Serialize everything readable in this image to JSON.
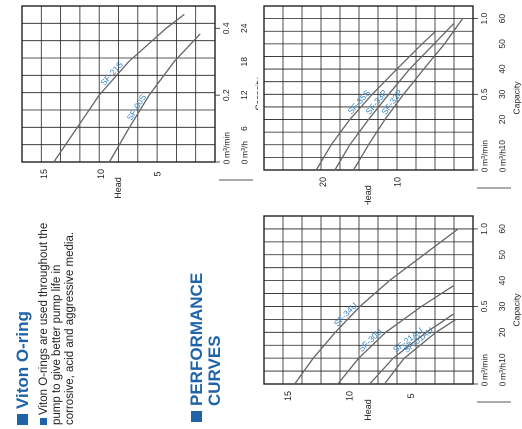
{
  "section_viton": {
    "title": "Viton O-ring",
    "bullet": "Viton O-rings are used throughout the pump to give better pump life in corrosive, acid and aggressive media."
  },
  "section_curves": {
    "title_line1": "PERFORMANCE",
    "title_line2": "CURVES"
  },
  "chart_data": [
    {
      "type": "line",
      "ylabel": "Head",
      "xlabel": "Capacity",
      "unit_m3min": "m³/min",
      "unit_m3h": "m³/h",
      "ylim": [
        0,
        17
      ],
      "xlim_m3h": [
        0,
        28
      ],
      "yticks": [
        5,
        10,
        15
      ],
      "m3min_ticks": [
        "0",
        "0.2",
        "0.4"
      ],
      "m3h_ticks": [
        "0",
        "6",
        "12",
        "18",
        "24"
      ],
      "series": [
        {
          "name": "SF-21S",
          "x": [
            0,
            6,
            12,
            18,
            24,
            26.5
          ],
          "y": [
            14.2,
            12.2,
            10.2,
            7.6,
            4.3,
            2.7
          ]
        },
        {
          "name": "SF-00S",
          "x": [
            0,
            6,
            12,
            18,
            23
          ],
          "y": [
            9.3,
            7.6,
            5.8,
            3.6,
            1.3
          ]
        }
      ]
    },
    {
      "type": "line",
      "ylabel": "Head",
      "xlabel": "Capacity",
      "unit_m3min": "m³/min",
      "unit_m3h": "m³/h",
      "ylim": [
        0,
        28
      ],
      "xlim_m3h": [
        0,
        65
      ],
      "yticks": [
        10,
        20
      ],
      "m3min_ticks": [
        "0",
        "0.5",
        "1.0"
      ],
      "m3h_ticks": [
        "0",
        "10",
        "20",
        "30",
        "40",
        "50",
        "60"
      ],
      "series": [
        {
          "name": "SF-35S",
          "x": [
            0,
            10,
            20,
            30,
            40,
            50,
            55
          ],
          "y": [
            21,
            19,
            16.5,
            13.5,
            10.2,
            6.8,
            5
          ]
        },
        {
          "name": "SF-33P",
          "x": [
            0,
            10,
            20,
            30,
            40,
            50,
            58
          ],
          "y": [
            18.5,
            16.5,
            14,
            11.3,
            8.5,
            5.2,
            2.6
          ]
        },
        {
          "name": "SF-32P",
          "x": [
            0,
            10,
            20,
            30,
            40,
            50,
            60
          ],
          "y": [
            16,
            14,
            11.8,
            9.3,
            6.6,
            3.8,
            1.4
          ]
        }
      ]
    },
    {
      "type": "line",
      "ylabel": "Head",
      "xlabel": "Capacity",
      "unit_m3min": "m³/min",
      "unit_m3h": "m³/h",
      "ylim": [
        0,
        17
      ],
      "xlim_m3h": [
        0,
        65
      ],
      "yticks": [
        5,
        10,
        15
      ],
      "m3min_ticks": [
        "0",
        "0.5",
        "1.0"
      ],
      "m3h_ticks": [
        "0",
        "10",
        "20",
        "30",
        "40",
        "50",
        "60"
      ],
      "series": [
        {
          "name": "SF-34U",
          "x": [
            0,
            10,
            20,
            30,
            40,
            50,
            60
          ],
          "y": [
            14.5,
            13,
            11.2,
            9.2,
            6.8,
            4,
            1.2
          ]
        },
        {
          "name": "SF-30U",
          "x": [
            0,
            10,
            20,
            30,
            38
          ],
          "y": [
            11,
            9.3,
            7.1,
            4.2,
            1.6
          ]
        },
        {
          "name": "SF-21AU",
          "x": [
            0,
            10,
            20,
            27
          ],
          "y": [
            8.4,
            6.5,
            3.8,
            1.6
          ]
        },
        {
          "name": "SF-01AU",
          "x": [
            0,
            10,
            20,
            25
          ],
          "y": [
            7.2,
            5.6,
            3,
            1.4
          ]
        }
      ]
    }
  ],
  "colors": {
    "accent": "#1f63a8",
    "label": "#3b84c4",
    "grid": "#222222",
    "curve": "#666666"
  }
}
